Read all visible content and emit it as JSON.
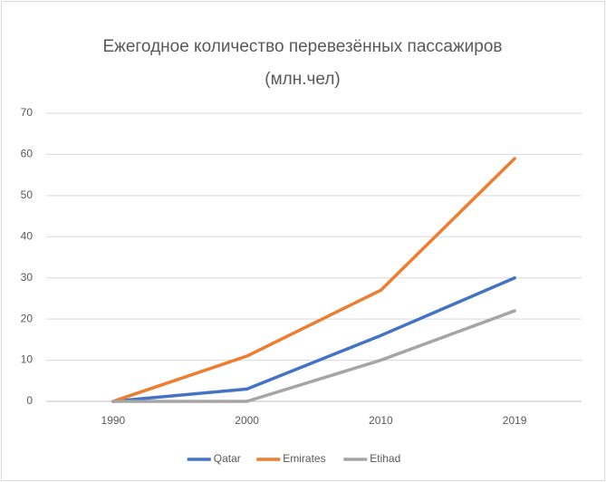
{
  "chart_data": {
    "type": "line",
    "title": "Ежегодное количество перевезённых пассажиров (млн.чел)",
    "categories": [
      "1990",
      "2000",
      "2010",
      "2019"
    ],
    "series": [
      {
        "name": "Qatar",
        "color": "#4472c4",
        "values": [
          0,
          3,
          16,
          30
        ]
      },
      {
        "name": "Emirates",
        "color": "#ed7d31",
        "values": [
          0,
          11,
          27,
          59
        ]
      },
      {
        "name": "Etihad",
        "color": "#a5a5a5",
        "values": [
          0,
          0,
          10,
          22
        ]
      }
    ],
    "ylim": [
      0,
      70
    ],
    "yticks": [
      0,
      10,
      20,
      30,
      40,
      50,
      60,
      70
    ],
    "grid": true,
    "legend": "bottom"
  }
}
